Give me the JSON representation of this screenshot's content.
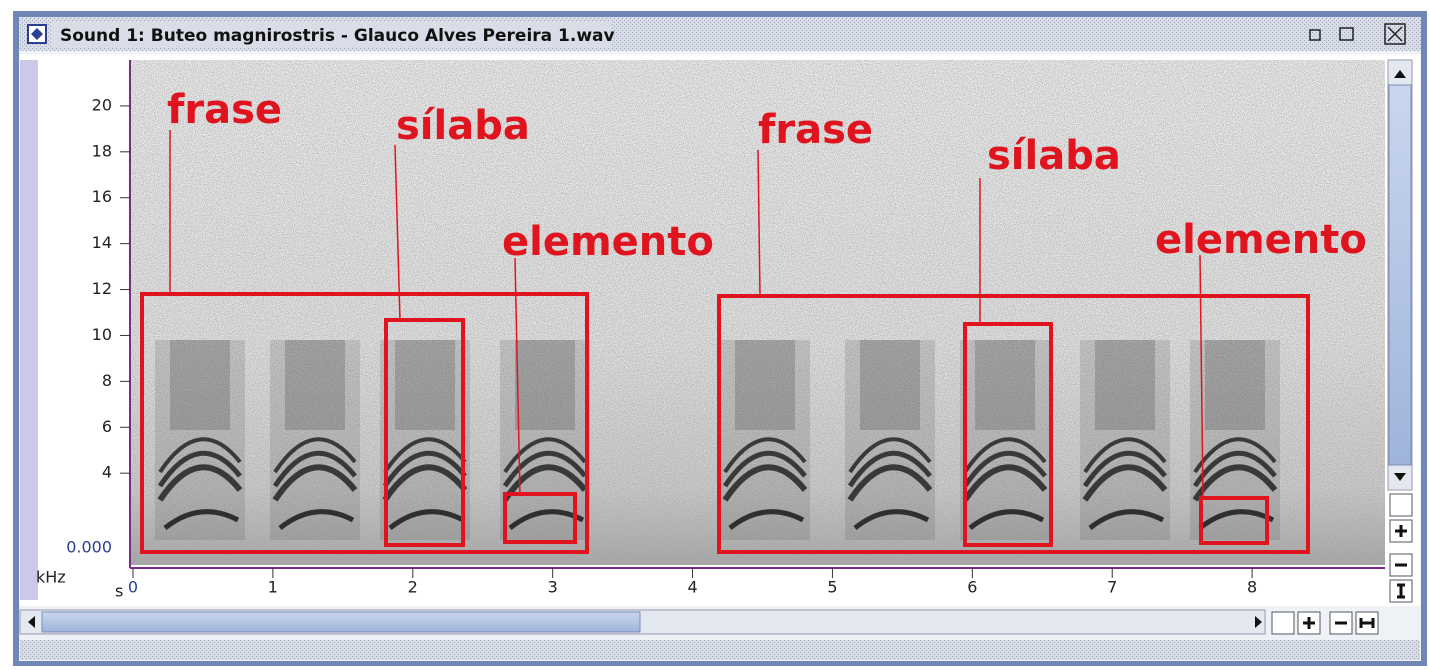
{
  "window": {
    "title": "Sound 1: Buteo magnirostris - Glauco Alves Pereira 1.wav"
  },
  "spectrogram": {
    "y_axis": {
      "unit": "kHz",
      "lim": [
        0,
        22
      ],
      "ticks": [
        20,
        18,
        16,
        14,
        12,
        10,
        8,
        6,
        4
      ],
      "origin_label": "0.000"
    },
    "x_axis": {
      "unit": "s",
      "lim": [
        0,
        8.95
      ],
      "ticks": [
        0,
        1,
        2,
        3,
        4,
        5,
        6,
        7,
        8
      ]
    }
  },
  "annotations": [
    {
      "label": "frase"
    },
    {
      "label": "sílaba"
    },
    {
      "label": "elemento"
    },
    {
      "label": "frase"
    },
    {
      "label": "sílaba"
    },
    {
      "label": "elemento"
    }
  ]
}
